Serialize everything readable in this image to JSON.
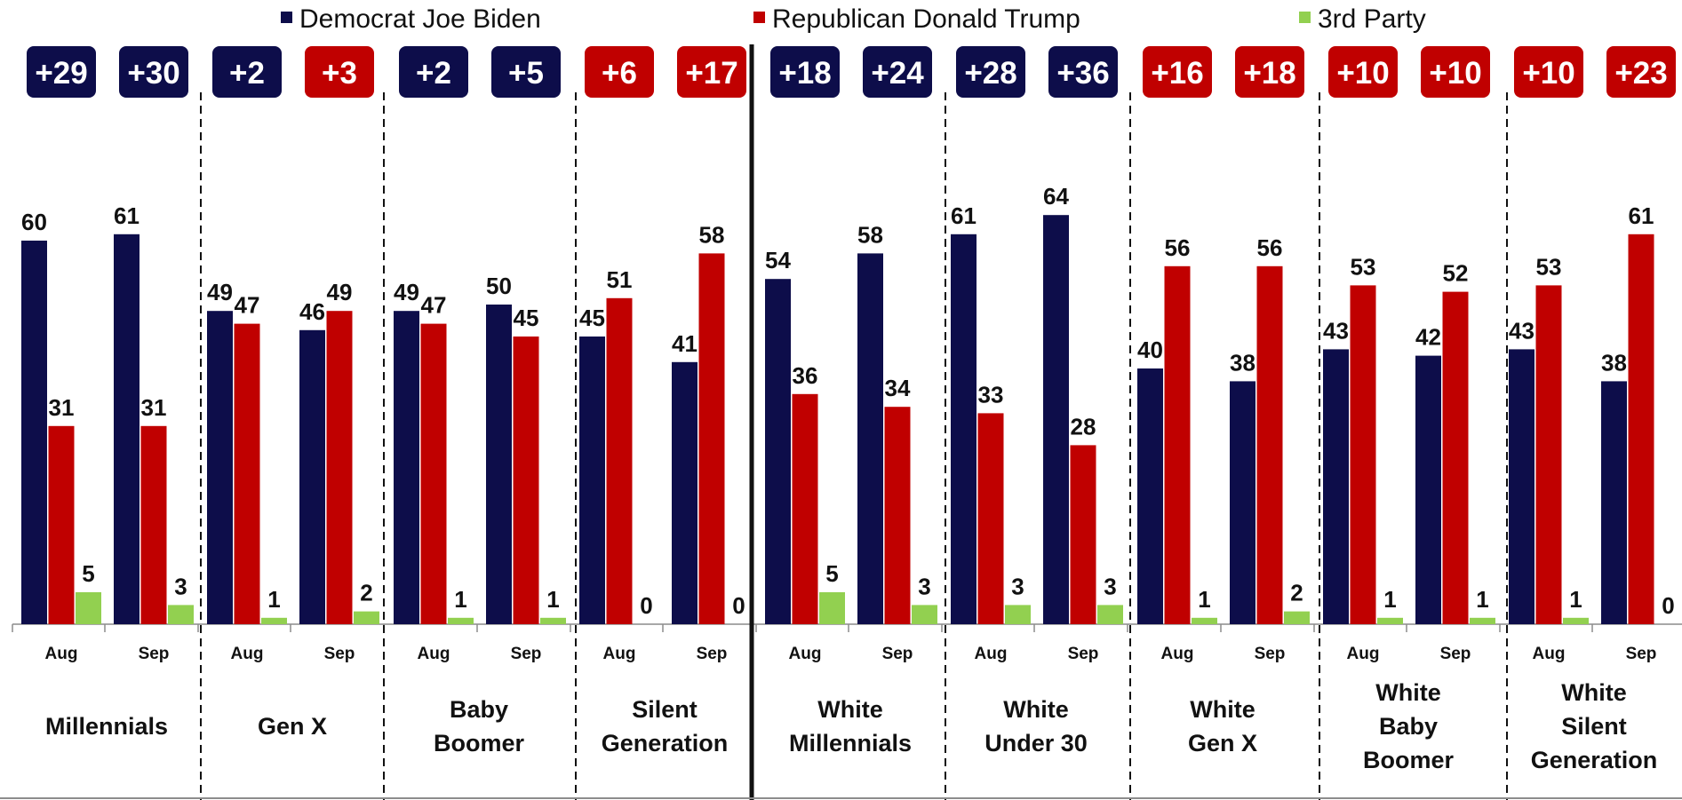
{
  "legend": [
    {
      "label": "Democrat Joe Biden",
      "color": "#0d0d4a"
    },
    {
      "label": "Republican Donald Trump",
      "color": "#c00000"
    },
    {
      "label": "3rd Party",
      "color": "#92d050"
    }
  ],
  "chart_data": {
    "type": "bar",
    "ylim": [
      0,
      70
    ],
    "grid": false,
    "legend_position": "top",
    "series": [
      {
        "name": "Democrat Joe Biden",
        "color": "#0d0d4a"
      },
      {
        "name": "Republican Donald Trump",
        "color": "#c00000"
      },
      {
        "name": "3rd Party",
        "color": "#92d050"
      }
    ],
    "groups": [
      {
        "label": [
          "Millennials"
        ],
        "periods": [
          {
            "tick": "Aug",
            "values": [
              60,
              31,
              5
            ],
            "margin": "+29",
            "margin_color": "#0d0d4a"
          },
          {
            "tick": "Sep",
            "values": [
              61,
              31,
              3
            ],
            "margin": "+30",
            "margin_color": "#0d0d4a"
          }
        ]
      },
      {
        "label": [
          "Gen X"
        ],
        "periods": [
          {
            "tick": "Aug",
            "values": [
              49,
              47,
              1
            ],
            "margin": "+2",
            "margin_color": "#0d0d4a"
          },
          {
            "tick": "Sep",
            "values": [
              46,
              49,
              2
            ],
            "margin": "+3",
            "margin_color": "#c00000"
          }
        ]
      },
      {
        "label": [
          "Baby",
          "Boomer"
        ],
        "periods": [
          {
            "tick": "Aug",
            "values": [
              49,
              47,
              1
            ],
            "margin": "+2",
            "margin_color": "#0d0d4a"
          },
          {
            "tick": "Sep",
            "values": [
              50,
              45,
              1
            ],
            "margin": "+5",
            "margin_color": "#0d0d4a"
          }
        ]
      },
      {
        "label": [
          "Silent",
          "Generation"
        ],
        "periods": [
          {
            "tick": "Aug",
            "values": [
              45,
              51,
              0
            ],
            "margin": "+6",
            "margin_color": "#c00000"
          },
          {
            "tick": "Sep",
            "values": [
              41,
              58,
              0
            ],
            "margin": "+17",
            "margin_color": "#c00000"
          }
        ]
      },
      {
        "label": [
          "White",
          "Millennials"
        ],
        "periods": [
          {
            "tick": "Aug",
            "values": [
              54,
              36,
              5
            ],
            "margin": "+18",
            "margin_color": "#0d0d4a"
          },
          {
            "tick": "Sep",
            "values": [
              58,
              34,
              3
            ],
            "margin": "+24",
            "margin_color": "#0d0d4a"
          }
        ]
      },
      {
        "label": [
          "White",
          "Under 30"
        ],
        "periods": [
          {
            "tick": "Aug",
            "values": [
              61,
              33,
              3
            ],
            "margin": "+28",
            "margin_color": "#0d0d4a"
          },
          {
            "tick": "Sep",
            "values": [
              64,
              28,
              3
            ],
            "margin": "+36",
            "margin_color": "#0d0d4a"
          }
        ]
      },
      {
        "label": [
          "White",
          "Gen X"
        ],
        "periods": [
          {
            "tick": "Aug",
            "values": [
              40,
              56,
              1
            ],
            "margin": "+16",
            "margin_color": "#c00000"
          },
          {
            "tick": "Sep",
            "values": [
              38,
              56,
              2
            ],
            "margin": "+18",
            "margin_color": "#c00000"
          }
        ]
      },
      {
        "label": [
          "White",
          "Baby",
          "Boomer"
        ],
        "periods": [
          {
            "tick": "Aug",
            "values": [
              43,
              53,
              1
            ],
            "margin": "+10",
            "margin_color": "#c00000"
          },
          {
            "tick": "Sep",
            "values": [
              42,
              52,
              1
            ],
            "margin": "+10",
            "margin_color": "#c00000"
          }
        ]
      },
      {
        "label": [
          "White",
          "Silent",
          "Generation"
        ],
        "periods": [
          {
            "tick": "Aug",
            "values": [
              43,
              53,
              1
            ],
            "margin": "+10",
            "margin_color": "#c00000"
          },
          {
            "tick": "Sep",
            "values": [
              38,
              61,
              0
            ],
            "margin": "+23",
            "margin_color": "#c00000"
          }
        ]
      }
    ]
  }
}
